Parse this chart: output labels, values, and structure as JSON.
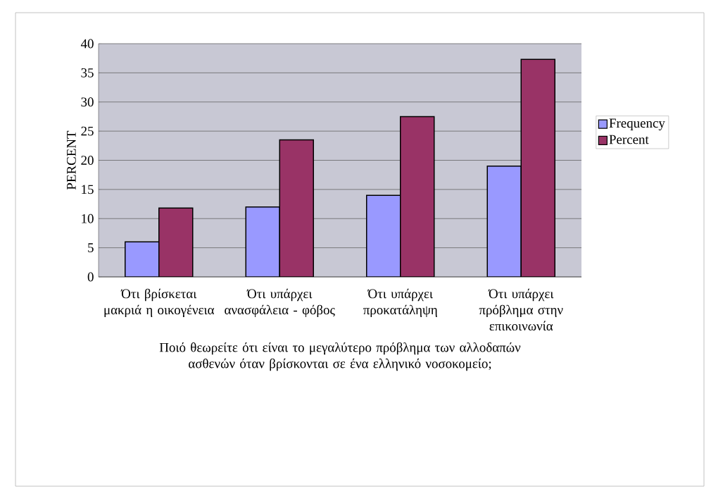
{
  "chart_data": {
    "type": "bar",
    "categories": [
      "Ότι βρίσκεται μακριά η οικογένεια",
      "Ότι υπάρχει ανασφάλεια - φόβος",
      "Ότι υπάρχει προκατάληψη",
      "Ότι υπάρχει πρόβλημα στην επικοινωνία"
    ],
    "series": [
      {
        "name": "Frequency",
        "color": "#9999ff",
        "values": [
          6,
          12,
          14,
          19
        ]
      },
      {
        "name": "Percent",
        "color": "#993366",
        "values": [
          11.8,
          23.5,
          27.5,
          37.3
        ]
      }
    ],
    "xlabel": "Ποιό θεωρείτε ότι είναι το μεγαλύτερο πρόβλημα των αλλοδαπών ασθενών όταν βρίσκονται σε ένα ελληνικό νοσοκομείο;",
    "ylabel": "PERCENT",
    "ylim": [
      0,
      40
    ],
    "yticks": [
      0,
      5,
      10,
      15,
      20,
      25,
      30,
      35,
      40
    ],
    "grid": "y",
    "legend": "right"
  }
}
